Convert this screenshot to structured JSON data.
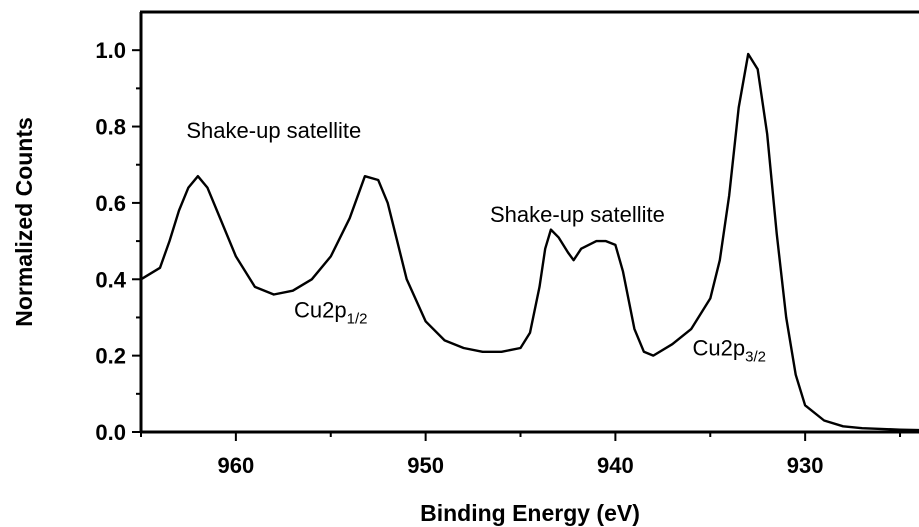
{
  "chart_data": {
    "type": "line",
    "xlabel": "Binding Energy (eV)",
    "ylabel": "Normalized Counts",
    "xlim": [
      965,
      924
    ],
    "ylim": [
      0,
      1.1
    ],
    "x_reversed": true,
    "grid": false,
    "legend": "none",
    "x_ticks": [
      960,
      950,
      940,
      930
    ],
    "y_ticks": [
      0.0,
      0.2,
      0.4,
      0.6,
      0.8,
      1.0
    ],
    "y_tick_labels": [
      "0.0",
      "0.2",
      "0.4",
      "0.6",
      "0.8",
      "1.0"
    ],
    "line_color": "#000000",
    "series": [
      {
        "x": [
          965,
          964,
          963.5,
          963,
          962.5,
          962,
          961.5,
          961,
          960,
          959,
          958,
          957,
          956,
          955,
          954,
          953.2,
          952.5,
          952,
          951.5,
          951,
          950,
          949,
          948,
          947,
          946,
          945,
          944.5,
          944,
          943.7,
          943.4,
          943,
          942.5,
          942.2,
          941.8,
          941,
          940.5,
          940,
          939.6,
          939,
          938.5,
          938,
          937,
          936,
          935,
          934.5,
          934,
          933.5,
          933,
          932.5,
          932,
          931.5,
          931,
          930.5,
          930,
          929,
          928,
          927,
          926,
          925,
          924
        ],
        "y": [
          0.4,
          0.43,
          0.5,
          0.58,
          0.64,
          0.67,
          0.64,
          0.58,
          0.46,
          0.38,
          0.36,
          0.37,
          0.4,
          0.46,
          0.56,
          0.67,
          0.66,
          0.6,
          0.5,
          0.4,
          0.29,
          0.24,
          0.22,
          0.21,
          0.21,
          0.22,
          0.26,
          0.38,
          0.48,
          0.53,
          0.51,
          0.47,
          0.45,
          0.48,
          0.5,
          0.5,
          0.49,
          0.42,
          0.27,
          0.21,
          0.2,
          0.23,
          0.27,
          0.35,
          0.45,
          0.62,
          0.85,
          0.99,
          0.95,
          0.78,
          0.52,
          0.3,
          0.15,
          0.07,
          0.03,
          0.015,
          0.01,
          0.008,
          0.006,
          0.005
        ]
      }
    ],
    "annotations": [
      {
        "id": "sat-left",
        "main": "Shake-up satellite",
        "sub": "",
        "x": 958,
        "y": 0.77
      },
      {
        "id": "cu2p12",
        "main": "Cu2p",
        "sub": "1/2",
        "x": 955,
        "y": 0.3
      },
      {
        "id": "sat-mid",
        "main": "Shake-up satellite",
        "sub": "",
        "x": 942,
        "y": 0.55
      },
      {
        "id": "cu2p32",
        "main": "Cu2p",
        "sub": "3/2",
        "x": 934,
        "y": 0.2
      }
    ]
  }
}
